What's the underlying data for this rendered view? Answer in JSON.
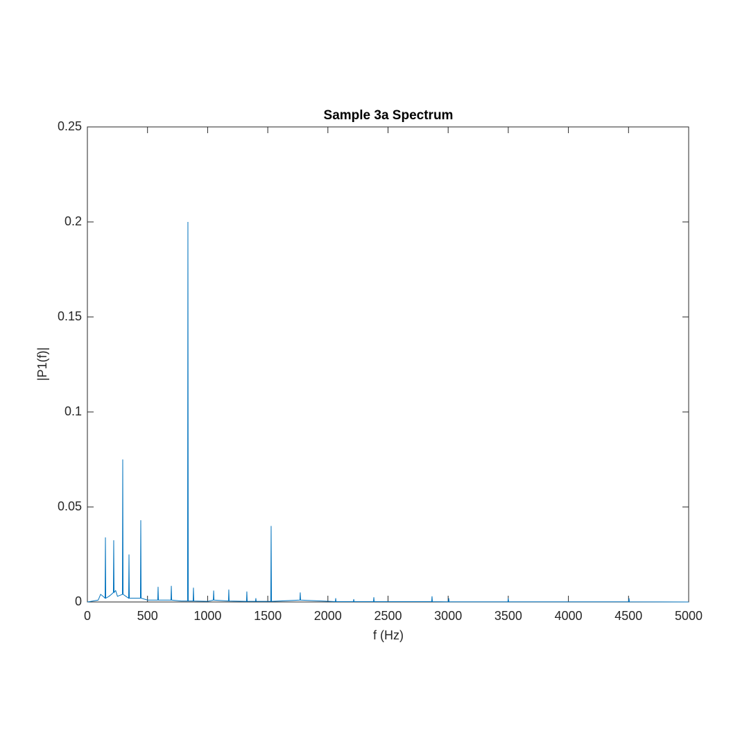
{
  "chart_data": {
    "type": "line",
    "title": "Sample 3a Spectrum",
    "xlabel": "f (Hz)",
    "ylabel": "|P1(f)|",
    "x": [
      0,
      90,
      110,
      130,
      147,
      150,
      153,
      180,
      200,
      216,
      219,
      222,
      235,
      250,
      291,
      294,
      297,
      320,
      343,
      346,
      349,
      400,
      441,
      444,
      447,
      500,
      585,
      588,
      591,
      695,
      698,
      701,
      780,
      833,
      836,
      839,
      879,
      882,
      885,
      1000,
      1047,
      1050,
      1053,
      1173,
      1176,
      1179,
      1323,
      1326,
      1329,
      1398,
      1401,
      1404,
      1525,
      1528,
      1531,
      1767,
      1770,
      1773,
      2062,
      2065,
      2068,
      2212,
      2215,
      2218,
      2379,
      2382,
      2385,
      2863,
      2866,
      2869,
      3002,
      3005,
      3008,
      3497,
      3500,
      3503,
      4501,
      4504,
      4507,
      5000
    ],
    "values": [
      0,
      0.001,
      0.004,
      0.003,
      0.002,
      0.034,
      0.002,
      0.003,
      0.004,
      0.005,
      0.0325,
      0.005,
      0.006,
      0.003,
      0.004,
      0.075,
      0.004,
      0.003,
      0.002,
      0.025,
      0.002,
      0.002,
      0.002,
      0.043,
      0.002,
      0.001,
      0.001,
      0.008,
      0.001,
      0.001,
      0.0085,
      0.001,
      0.0005,
      0.0005,
      0.2,
      0.0005,
      0.0005,
      0.0075,
      0.0005,
      0.0003,
      0.001,
      0.006,
      0.001,
      0.0005,
      0.0065,
      0.0005,
      0.0003,
      0.0055,
      0.0003,
      0.0003,
      0.002,
      0.0003,
      0.0003,
      0.04,
      0.0003,
      0.001,
      0.005,
      0.001,
      0.0002,
      0.002,
      0.0002,
      0.0002,
      0.0015,
      0.0002,
      0.0002,
      0.0025,
      0.0002,
      0.0002,
      0.003,
      0.0002,
      0.0001,
      0.002,
      0.0001,
      0.0001,
      0.002,
      0.0001,
      0.0001,
      0.002,
      0.0001,
      0
    ],
    "color": "#0072bd",
    "xlim": [
      0,
      5000
    ],
    "xticks": [
      0,
      500,
      1000,
      1500,
      2000,
      2500,
      3000,
      3500,
      4000,
      4500,
      5000
    ],
    "ylim": [
      0,
      0.25
    ],
    "yticks": [
      0,
      0.05,
      0.1,
      0.15,
      0.2,
      0.25
    ]
  }
}
